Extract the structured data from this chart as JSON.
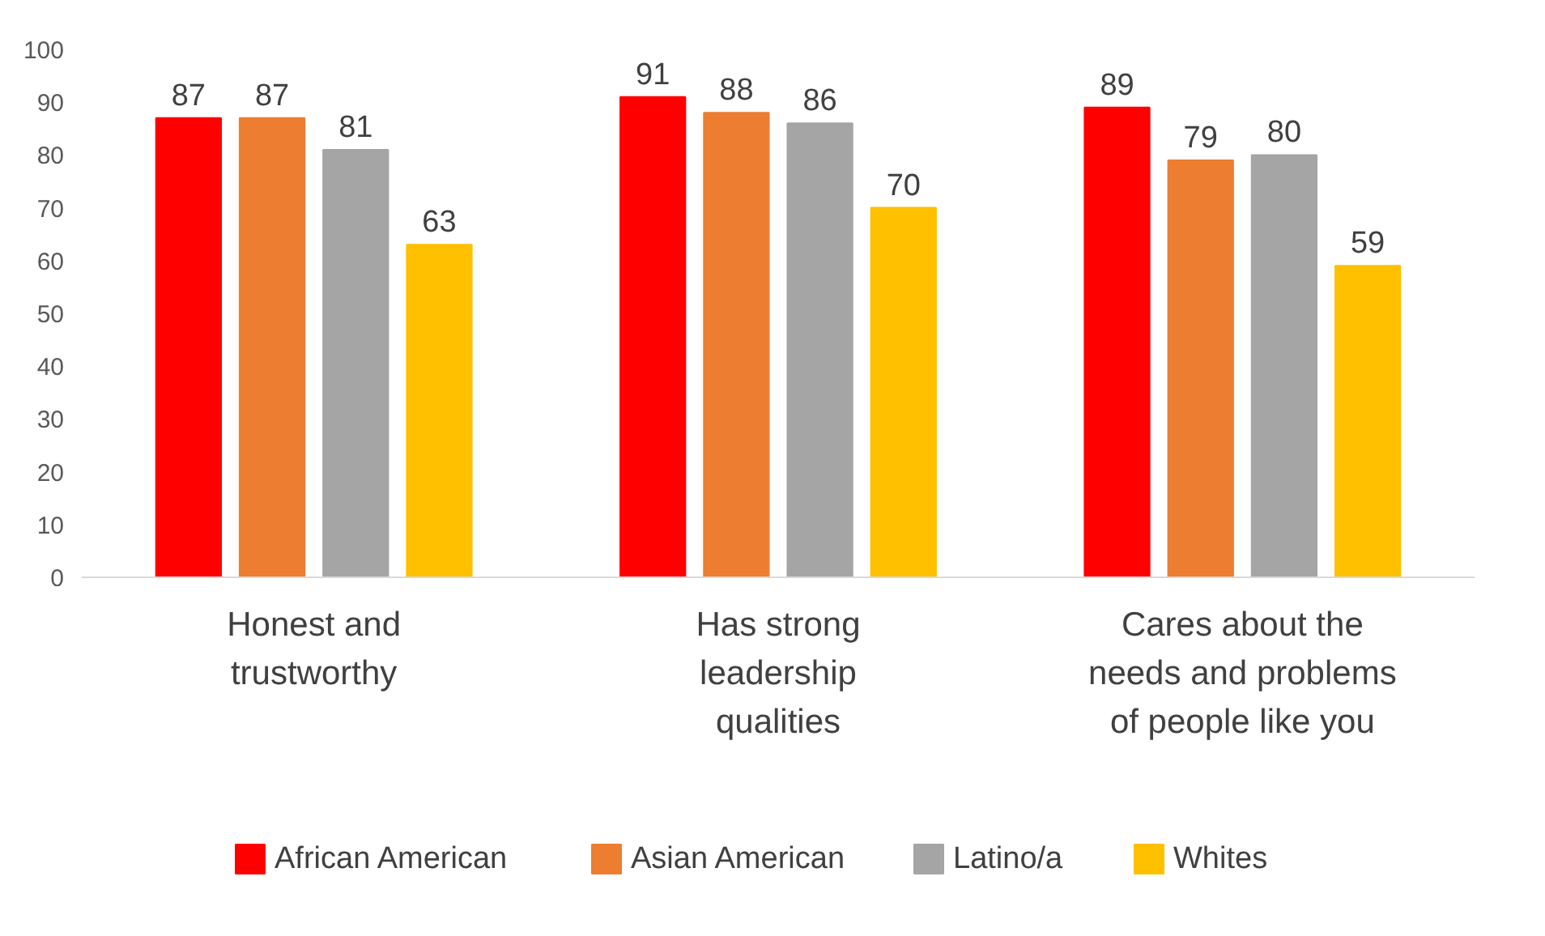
{
  "chart_data": {
    "type": "bar",
    "categories": [
      "Honest and trustworthy",
      "Has strong leadership qualities",
      "Cares about the needs and problems of people like you"
    ],
    "series": [
      {
        "name": "African American",
        "color": "#ff0000",
        "values": [
          87,
          91,
          89
        ]
      },
      {
        "name": "Asian American",
        "color": "#ed7d31",
        "values": [
          87,
          88,
          79
        ]
      },
      {
        "name": "Latino/a",
        "color": "#a5a5a5",
        "values": [
          81,
          86,
          80
        ]
      },
      {
        "name": "Whites",
        "color": "#ffc000",
        "values": [
          63,
          70,
          59
        ]
      }
    ],
    "ylim": [
      0,
      100
    ],
    "yticks": [
      0,
      10,
      20,
      30,
      40,
      50,
      60,
      70,
      80,
      90,
      100
    ],
    "grid": false,
    "legend": "bottom",
    "data_labels": true
  }
}
